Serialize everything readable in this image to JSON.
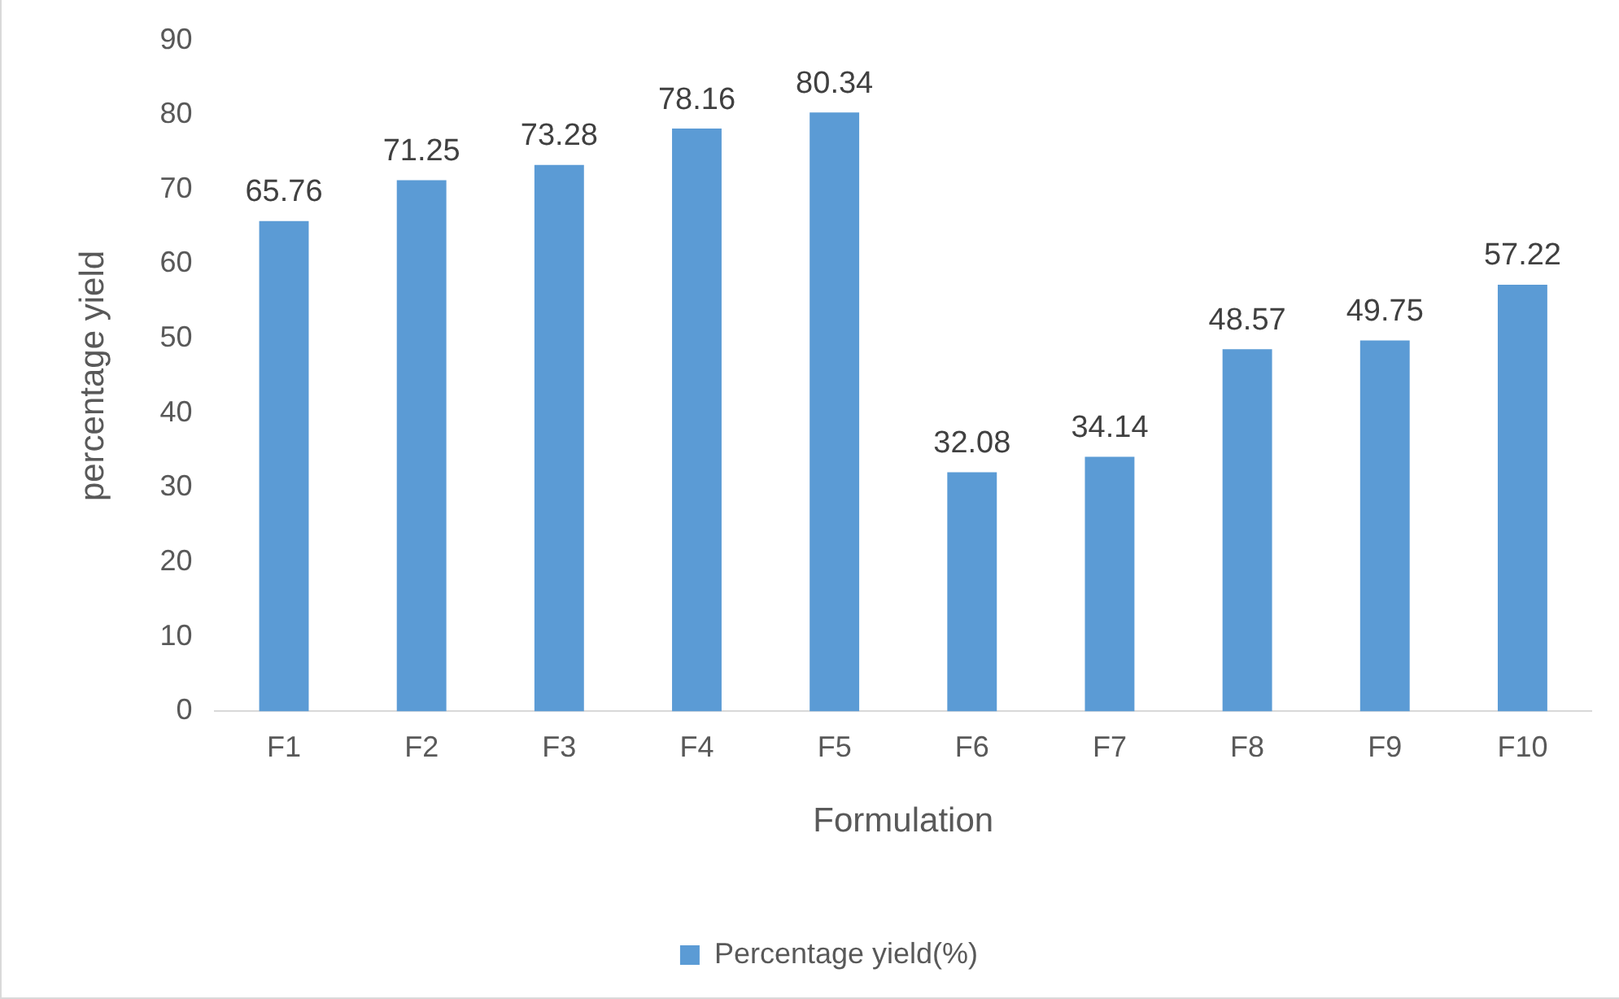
{
  "chart_data": {
    "type": "bar",
    "xlabel": "Formulation",
    "ylabel": "percentage yield",
    "categories": [
      "F1",
      "F2",
      "F3",
      "F4",
      "F5",
      "F6",
      "F7",
      "F8",
      "F9",
      "F10"
    ],
    "series": [
      {
        "name": "Percentage yield(%)",
        "color": "#5b9bd5",
        "values": [
          65.76,
          71.25,
          73.28,
          78.16,
          80.34,
          32.08,
          34.14,
          48.57,
          49.75,
          57.22
        ]
      }
    ],
    "ylim": [
      0,
      90
    ],
    "yticks": [
      0,
      10,
      20,
      30,
      40,
      50,
      60,
      70,
      80,
      90
    ],
    "grid": false,
    "legend": "bottom",
    "data_labels": true
  }
}
